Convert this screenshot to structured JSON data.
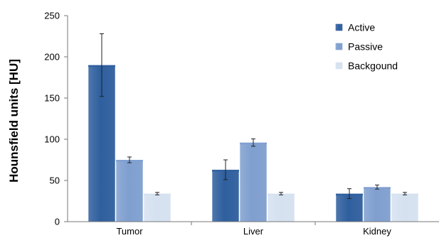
{
  "chart_data": {
    "type": "bar",
    "title": "",
    "xlabel": "",
    "ylabel": "Hounsfield units [HU]",
    "categories": [
      "Tumor",
      "Liver",
      "Kidney"
    ],
    "ylim": [
      0,
      250
    ],
    "yticks": [
      0,
      50,
      100,
      150,
      200,
      250
    ],
    "grid": false,
    "legend_position": "top-right",
    "series": [
      {
        "name": "Active",
        "color": "#2f5f9e",
        "values": [
          190,
          63,
          34
        ],
        "errors": [
          38,
          12,
          6
        ]
      },
      {
        "name": "Passive",
        "color": "#7f9fcf",
        "values": [
          75,
          96,
          42
        ],
        "errors": [
          3.5,
          4.5,
          2.5
        ]
      },
      {
        "name": "Backgound",
        "color": "#d5e1f0",
        "values": [
          34,
          34,
          34
        ],
        "errors": [
          1.5,
          1.5,
          1.5
        ]
      }
    ]
  }
}
